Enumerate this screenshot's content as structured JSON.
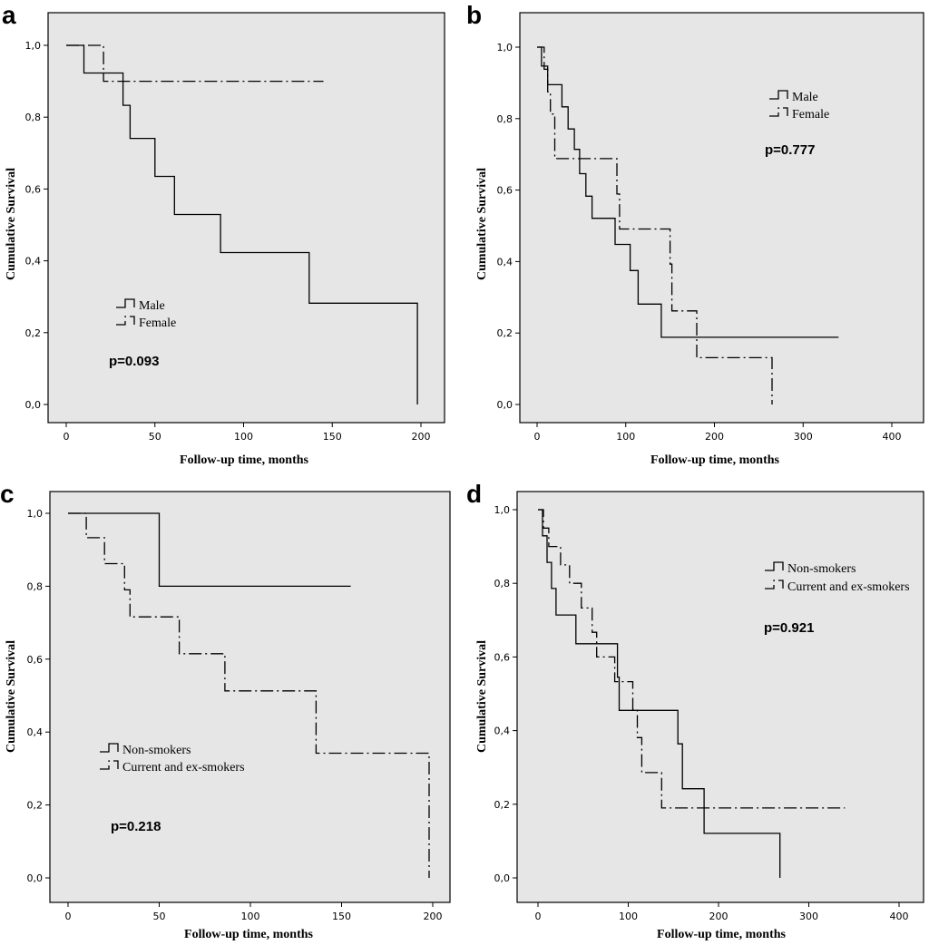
{
  "chart_data": [
    {
      "panel_label": "a",
      "type": "line",
      "step": true,
      "xlabel": "Follow-up time, months",
      "ylabel": "Cumulative Survival",
      "xlim": [
        0,
        200
      ],
      "ylim": [
        0,
        1
      ],
      "xticks": [
        "0",
        "50",
        "100",
        "150",
        "200"
      ],
      "yticks": [
        "0,0",
        "0,2",
        "0,4",
        "0,6",
        "0,8",
        "1,0"
      ],
      "p_value": "p=0.093",
      "legend": [
        "Male",
        "Female"
      ],
      "legend_placement": "center-left",
      "series": [
        {
          "name": "Male",
          "style": "solid",
          "x": [
            0,
            10,
            32,
            36,
            50,
            61,
            87,
            137,
            198,
            198
          ],
          "y": [
            1.0,
            0.923,
            0.833,
            0.741,
            0.635,
            0.529,
            0.423,
            0.282,
            0.282,
            0.0
          ]
        },
        {
          "name": "Female",
          "style": "dashdot",
          "x": [
            0,
            21,
            145
          ],
          "y": [
            1.0,
            0.9,
            0.9
          ]
        }
      ]
    },
    {
      "panel_label": "b",
      "type": "line",
      "step": true,
      "xlabel": "Follow-up time, months",
      "ylabel": "Cumulative Survival",
      "xlim": [
        0,
        400
      ],
      "ylim": [
        0,
        1
      ],
      "xticks": [
        "0",
        "100",
        "200",
        "300",
        "400"
      ],
      "yticks": [
        "0,0",
        "0,2",
        "0,4",
        "0,6",
        "0,8",
        "1,0"
      ],
      "p_value": "p=0.777",
      "legend": [
        "Male",
        "Female"
      ],
      "legend_placement": "top-right",
      "series": [
        {
          "name": "Male",
          "style": "solid",
          "x": [
            0,
            5,
            12,
            28,
            35,
            42,
            48,
            55,
            62,
            88,
            105,
            114,
            140,
            340
          ],
          "y": [
            1.0,
            0.947,
            0.895,
            0.833,
            0.771,
            0.714,
            0.646,
            0.583,
            0.521,
            0.448,
            0.375,
            0.281,
            0.188,
            0.188
          ]
        },
        {
          "name": "Female",
          "style": "dashdot",
          "x": [
            0,
            8,
            12,
            15,
            20,
            90,
            93,
            150,
            152,
            157,
            180,
            183,
            265,
            265
          ],
          "y": [
            1.0,
            0.938,
            0.875,
            0.813,
            0.688,
            0.589,
            0.491,
            0.393,
            0.262,
            0.262,
            0.131,
            0.131,
            0.0,
            0.0
          ]
        }
      ]
    },
    {
      "panel_label": "c",
      "type": "line",
      "step": true,
      "xlabel": "Follow-up time, months",
      "ylabel": "Cumulative Survival",
      "xlim": [
        0,
        200
      ],
      "ylim": [
        0,
        1
      ],
      "xticks": [
        "0",
        "50",
        "100",
        "150",
        "200"
      ],
      "yticks": [
        "0,0",
        "0,2",
        "0,4",
        "0,6",
        "0,8",
        "1,0"
      ],
      "p_value": "p=0.218",
      "legend": [
        "Non-smokers",
        "Current and ex-smokers"
      ],
      "legend_placement": "bottom-left",
      "series": [
        {
          "name": "Non-smokers",
          "style": "solid",
          "x": [
            0,
            50,
            155
          ],
          "y": [
            1.0,
            0.8,
            0.8
          ]
        },
        {
          "name": "Current and ex-smokers",
          "style": "dashdot",
          "x": [
            0,
            10,
            20,
            31,
            34,
            50,
            61,
            86,
            136,
            198,
            198
          ],
          "y": [
            1.0,
            0.933,
            0.862,
            0.79,
            0.716,
            0.716,
            0.615,
            0.513,
            0.342,
            0.342,
            0.0
          ]
        }
      ]
    },
    {
      "panel_label": "d",
      "type": "line",
      "step": true,
      "xlabel": "Follow-up time, months",
      "ylabel": "Cumulative Survival",
      "xlim": [
        0,
        400
      ],
      "ylim": [
        0,
        1
      ],
      "xticks": [
        "0",
        "100",
        "200",
        "300",
        "400"
      ],
      "yticks": [
        "0,0",
        "0,2",
        "0,4",
        "0,6",
        "0,8",
        "1,0"
      ],
      "p_value": "p=0.921",
      "legend": [
        "Non-smokers",
        "Current and ex-smokers"
      ],
      "legend_placement": "top-right",
      "series": [
        {
          "name": "Non-smokers",
          "style": "solid",
          "x": [
            0,
            5,
            10,
            15,
            20,
            42,
            88,
            90,
            155,
            160,
            184,
            268,
            268
          ],
          "y": [
            1.0,
            0.929,
            0.857,
            0.786,
            0.714,
            0.636,
            0.545,
            0.455,
            0.364,
            0.242,
            0.121,
            0.121,
            0.0
          ]
        },
        {
          "name": "Current and ex-smokers",
          "style": "dashdot",
          "x": [
            0,
            6,
            12,
            25,
            35,
            48,
            60,
            65,
            85,
            105,
            110,
            115,
            137,
            340
          ],
          "y": [
            1.0,
            0.95,
            0.9,
            0.85,
            0.8,
            0.733,
            0.667,
            0.6,
            0.533,
            0.457,
            0.381,
            0.286,
            0.19,
            0.19
          ]
        }
      ]
    }
  ]
}
